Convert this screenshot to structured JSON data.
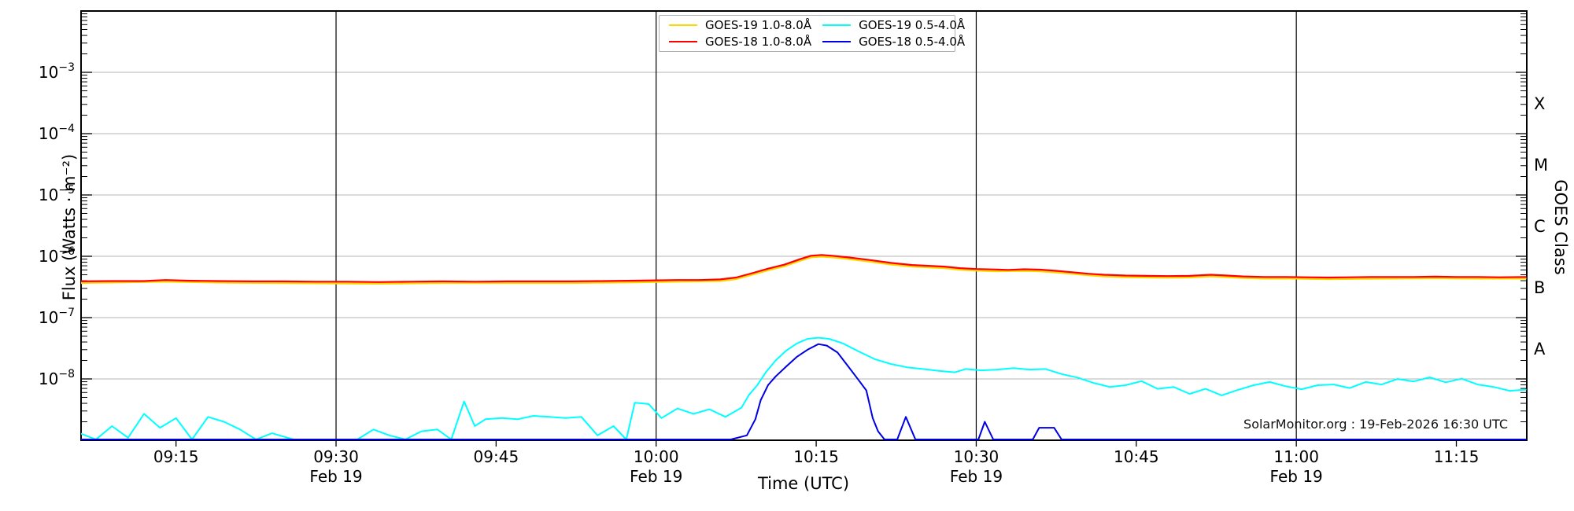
{
  "figure": {
    "watermark": "SolarMonitor.org : 19-Feb-2026 16:30 UTC",
    "background_color": "#ffffff",
    "frame_color": "#000000",
    "gridline_color": "#b4b4b4",
    "vline_color": "#000000"
  },
  "chart_data": {
    "type": "line",
    "title": "",
    "xlabel": "Time (UTC)",
    "ylabel": "Flux (Watts · m⁻²)",
    "ylabel_right": "GOES Class",
    "x_unit": "minutes after 09:00 UTC on 19-Feb-2026",
    "x_domain_minutes": [
      6.1,
      141.6
    ],
    "y_domain": [
      1e-09,
      0.01
    ],
    "grid": "horizontal-gray-decades plus black vertical lines each 30 min",
    "x_ticks": [
      {
        "t": 15,
        "label": "09:15",
        "sublabel": ""
      },
      {
        "t": 30,
        "label": "09:30",
        "sublabel": "Feb 19"
      },
      {
        "t": 45,
        "label": "09:45",
        "sublabel": ""
      },
      {
        "t": 60,
        "label": "10:00",
        "sublabel": "Feb 19"
      },
      {
        "t": 75,
        "label": "10:15",
        "sublabel": ""
      },
      {
        "t": 90,
        "label": "10:30",
        "sublabel": "Feb 19"
      },
      {
        "t": 105,
        "label": "10:45",
        "sublabel": ""
      },
      {
        "t": 120,
        "label": "11:00",
        "sublabel": "Feb 19"
      },
      {
        "t": 135,
        "label": "11:15",
        "sublabel": ""
      }
    ],
    "vlines_t": [
      30,
      60,
      90,
      120
    ],
    "hlines": [
      0.001,
      0.0001,
      1e-05,
      1e-06,
      1e-07,
      1e-08
    ],
    "y_ticks": [
      {
        "value": 0.001,
        "base": "10",
        "exp": "−3"
      },
      {
        "value": 0.0001,
        "base": "10",
        "exp": "−4"
      },
      {
        "value": 1e-05,
        "base": "10",
        "exp": "−5"
      },
      {
        "value": 1e-06,
        "base": "10",
        "exp": "−6"
      },
      {
        "value": 1e-07,
        "base": "10",
        "exp": "−7"
      },
      {
        "value": 1e-08,
        "base": "10",
        "exp": "−8"
      }
    ],
    "goes_classes": [
      {
        "label": "X",
        "value": 0.000316
      },
      {
        "label": "M",
        "value": 3.16e-05
      },
      {
        "label": "C",
        "value": 3.16e-06
      },
      {
        "label": "B",
        "value": 3.16e-07
      },
      {
        "label": "A",
        "value": 3.16e-08
      }
    ],
    "legend": {
      "position": "top-center",
      "entries": [
        {
          "label": "GOES-19 1.0-8.0Å",
          "color": "#ffd700"
        },
        {
          "label": "GOES-18 1.0-8.0Å",
          "color": "#ff0000"
        },
        {
          "label": "GOES-19 0.5-4.0Å",
          "color": "#00ffff"
        },
        {
          "label": "GOES-18 0.5-4.0Å",
          "color": "#0000e6"
        }
      ]
    },
    "series": [
      {
        "name": "GOES-19 1.0-8.0Å",
        "color": "#ffd700",
        "width": 2.2,
        "points": [
          [
            6,
            3.67e-07
          ],
          [
            14,
            3.85e-07
          ],
          [
            20,
            3.7e-07
          ],
          [
            28,
            3.62e-07
          ],
          [
            34,
            3.57e-07
          ],
          [
            40,
            3.67e-07
          ],
          [
            46,
            3.67e-07
          ],
          [
            52,
            3.67e-07
          ],
          [
            58,
            3.76e-07
          ],
          [
            62,
            3.85e-07
          ],
          [
            66,
            3.95e-07
          ],
          [
            67.5,
            4.23e-07
          ],
          [
            69,
            4.98e-07
          ],
          [
            70.5,
            5.92e-07
          ],
          [
            72,
            6.86e-07
          ],
          [
            73.5,
            8.46e-07
          ],
          [
            74.5,
            9.59e-07
          ],
          [
            75.5,
            9.87e-07
          ],
          [
            76.5,
            9.59e-07
          ],
          [
            78,
            9.02e-07
          ],
          [
            80,
            8.18e-07
          ],
          [
            82,
            7.33e-07
          ],
          [
            84,
            6.77e-07
          ],
          [
            85.5,
            6.58e-07
          ],
          [
            87,
            6.39e-07
          ],
          [
            88.5,
            6.02e-07
          ],
          [
            90,
            5.83e-07
          ],
          [
            92,
            5.69e-07
          ],
          [
            94.5,
            5.78e-07
          ],
          [
            96,
            5.69e-07
          ],
          [
            97.5,
            5.45e-07
          ],
          [
            99,
            5.17e-07
          ],
          [
            100.5,
            4.89e-07
          ],
          [
            102,
            4.7e-07
          ],
          [
            104,
            4.56e-07
          ],
          [
            106,
            4.51e-07
          ],
          [
            108,
            4.47e-07
          ],
          [
            110,
            4.51e-07
          ],
          [
            112,
            4.7e-07
          ],
          [
            113.5,
            4.56e-07
          ],
          [
            115,
            4.42e-07
          ],
          [
            117,
            4.32e-07
          ],
          [
            120,
            4.32e-07
          ],
          [
            123,
            4.23e-07
          ],
          [
            126,
            4.28e-07
          ],
          [
            129,
            4.32e-07
          ],
          [
            133,
            4.37e-07
          ],
          [
            137,
            4.32e-07
          ],
          [
            141.5,
            4.32e-07
          ]
        ]
      },
      {
        "name": "GOES-18 1.0-8.0Å",
        "color": "#ff0000",
        "width": 2.2,
        "points": [
          [
            6,
            3.9e-07
          ],
          [
            9,
            3.95e-07
          ],
          [
            12,
            3.95e-07
          ],
          [
            14,
            4.1e-07
          ],
          [
            16,
            4e-07
          ],
          [
            19,
            3.95e-07
          ],
          [
            22,
            3.9e-07
          ],
          [
            25,
            3.9e-07
          ],
          [
            28,
            3.85e-07
          ],
          [
            31,
            3.85e-07
          ],
          [
            34,
            3.8e-07
          ],
          [
            37,
            3.85e-07
          ],
          [
            40,
            3.9e-07
          ],
          [
            43,
            3.85e-07
          ],
          [
            46,
            3.9e-07
          ],
          [
            49,
            3.9e-07
          ],
          [
            52,
            3.9e-07
          ],
          [
            55,
            3.95e-07
          ],
          [
            58,
            4e-07
          ],
          [
            60,
            4.05e-07
          ],
          [
            62,
            4.1e-07
          ],
          [
            64,
            4.1e-07
          ],
          [
            66,
            4.2e-07
          ],
          [
            67.5,
            4.5e-07
          ],
          [
            69,
            5.3e-07
          ],
          [
            70.5,
            6.3e-07
          ],
          [
            72,
            7.3e-07
          ],
          [
            73.5,
            9e-07
          ],
          [
            74.5,
            1.02e-06
          ],
          [
            75.5,
            1.05e-06
          ],
          [
            76.5,
            1.02e-06
          ],
          [
            78,
            9.6e-07
          ],
          [
            80,
            8.7e-07
          ],
          [
            82,
            7.8e-07
          ],
          [
            84,
            7.2e-07
          ],
          [
            85.5,
            7e-07
          ],
          [
            87,
            6.8e-07
          ],
          [
            88.5,
            6.4e-07
          ],
          [
            90,
            6.2e-07
          ],
          [
            91.5,
            6.1e-07
          ],
          [
            93,
            6e-07
          ],
          [
            94.5,
            6.15e-07
          ],
          [
            96,
            6.05e-07
          ],
          [
            97.5,
            5.8e-07
          ],
          [
            99,
            5.5e-07
          ],
          [
            100.5,
            5.2e-07
          ],
          [
            102,
            5e-07
          ],
          [
            104,
            4.85e-07
          ],
          [
            106,
            4.8e-07
          ],
          [
            108,
            4.75e-07
          ],
          [
            110,
            4.8e-07
          ],
          [
            112,
            5e-07
          ],
          [
            113.5,
            4.85e-07
          ],
          [
            115,
            4.7e-07
          ],
          [
            117,
            4.6e-07
          ],
          [
            119,
            4.6e-07
          ],
          [
            121,
            4.55e-07
          ],
          [
            123,
            4.5e-07
          ],
          [
            125,
            4.55e-07
          ],
          [
            127,
            4.6e-07
          ],
          [
            129,
            4.6e-07
          ],
          [
            131,
            4.6e-07
          ],
          [
            133,
            4.65e-07
          ],
          [
            135,
            4.6e-07
          ],
          [
            137,
            4.6e-07
          ],
          [
            139,
            4.55e-07
          ],
          [
            141.5,
            4.6e-07
          ]
        ]
      },
      {
        "name": "GOES-19 0.5-4.0Å",
        "color": "#00ffff",
        "width": 2,
        "points": [
          [
            6,
            1.3e-09
          ],
          [
            7.5,
            1e-09
          ],
          [
            9,
            1.7e-09
          ],
          [
            10.5,
            1.1e-09
          ],
          [
            12,
            2.7e-09
          ],
          [
            13.5,
            1.6e-09
          ],
          [
            15,
            2.3e-09
          ],
          [
            16.5,
            1e-09
          ],
          [
            18,
            2.4e-09
          ],
          [
            19.5,
            2e-09
          ],
          [
            21,
            1.5e-09
          ],
          [
            22.5,
            1e-09
          ],
          [
            24,
            1.3e-09
          ],
          [
            26,
            1e-09
          ],
          [
            28,
            1e-09
          ],
          [
            30,
            1e-09
          ],
          [
            32,
            1e-09
          ],
          [
            33.5,
            1.5e-09
          ],
          [
            35,
            1.2e-09
          ],
          [
            36.5,
            1e-09
          ],
          [
            38,
            1.4e-09
          ],
          [
            39.5,
            1.5e-09
          ],
          [
            40.8,
            1e-09
          ],
          [
            42,
            4.3e-09
          ],
          [
            43,
            1.7e-09
          ],
          [
            44,
            2.2e-09
          ],
          [
            45.5,
            2.3e-09
          ],
          [
            47,
            2.2e-09
          ],
          [
            48.5,
            2.5e-09
          ],
          [
            50,
            2.4e-09
          ],
          [
            51.5,
            2.3e-09
          ],
          [
            53,
            2.4e-09
          ],
          [
            54.5,
            1.2e-09
          ],
          [
            56,
            1.7e-09
          ],
          [
            57.2,
            1e-09
          ],
          [
            58,
            4.1e-09
          ],
          [
            59.3,
            3.9e-09
          ],
          [
            60.5,
            2.3e-09
          ],
          [
            62,
            3.3e-09
          ],
          [
            63.5,
            2.7e-09
          ],
          [
            65,
            3.2e-09
          ],
          [
            66.5,
            2.4e-09
          ],
          [
            68,
            3.4e-09
          ],
          [
            68.7,
            5.5e-09
          ],
          [
            69.5,
            8e-09
          ],
          [
            70.3,
            1.3e-08
          ],
          [
            71.2,
            2e-08
          ],
          [
            72.2,
            2.9e-08
          ],
          [
            73.2,
            3.8e-08
          ],
          [
            74.2,
            4.5e-08
          ],
          [
            75.2,
            4.7e-08
          ],
          [
            76.2,
            4.5e-08
          ],
          [
            77.5,
            3.8e-08
          ],
          [
            79,
            2.8e-08
          ],
          [
            80.5,
            2.1e-08
          ],
          [
            82,
            1.75e-08
          ],
          [
            83.5,
            1.55e-08
          ],
          [
            85,
            1.45e-08
          ],
          [
            86.5,
            1.35e-08
          ],
          [
            88,
            1.28e-08
          ],
          [
            89,
            1.45e-08
          ],
          [
            90.5,
            1.38e-08
          ],
          [
            92,
            1.42e-08
          ],
          [
            93.5,
            1.5e-08
          ],
          [
            95,
            1.42e-08
          ],
          [
            96.5,
            1.45e-08
          ],
          [
            98,
            1.2e-08
          ],
          [
            99.5,
            1.05e-08
          ],
          [
            101,
            8.6e-09
          ],
          [
            102.5,
            7.4e-09
          ],
          [
            104,
            7.9e-09
          ],
          [
            105.5,
            9.2e-09
          ],
          [
            107,
            6.9e-09
          ],
          [
            108.5,
            7.4e-09
          ],
          [
            110,
            5.7e-09
          ],
          [
            111.5,
            6.9e-09
          ],
          [
            113,
            5.4e-09
          ],
          [
            114.5,
            6.6e-09
          ],
          [
            116,
            7.9e-09
          ],
          [
            117.5,
            8.9e-09
          ],
          [
            119,
            7.6e-09
          ],
          [
            120.5,
            6.8e-09
          ],
          [
            122,
            7.9e-09
          ],
          [
            123.5,
            8.1e-09
          ],
          [
            125,
            7.1e-09
          ],
          [
            126.5,
            8.9e-09
          ],
          [
            128,
            8.1e-09
          ],
          [
            129.5,
            1e-08
          ],
          [
            131,
            9.1e-09
          ],
          [
            132.5,
            1.06e-08
          ],
          [
            134,
            8.8e-09
          ],
          [
            135.5,
            1.01e-08
          ],
          [
            137,
            8.1e-09
          ],
          [
            138.5,
            7.4e-09
          ],
          [
            140,
            6.4e-09
          ],
          [
            141.5,
            6.7e-09
          ]
        ]
      },
      {
        "name": "GOES-18 0.5-4.0Å",
        "color": "#0000e6",
        "width": 2,
        "points": [
          [
            6,
            1e-09
          ],
          [
            15,
            1e-09
          ],
          [
            25,
            1e-09
          ],
          [
            35,
            1e-09
          ],
          [
            45,
            1e-09
          ],
          [
            55,
            1e-09
          ],
          [
            62,
            1e-09
          ],
          [
            67,
            1e-09
          ],
          [
            68.5,
            1.2e-09
          ],
          [
            69.3,
            2.2e-09
          ],
          [
            69.8,
            4.5e-09
          ],
          [
            70.5,
            8e-09
          ],
          [
            71.2,
            1.1e-08
          ],
          [
            72.2,
            1.6e-08
          ],
          [
            73.2,
            2.3e-08
          ],
          [
            74.2,
            3e-08
          ],
          [
            75.2,
            3.7e-08
          ],
          [
            76,
            3.5e-08
          ],
          [
            77,
            2.7e-08
          ],
          [
            78,
            1.6e-08
          ],
          [
            78.8,
            1.05e-08
          ],
          [
            79.7,
            6.5e-09
          ],
          [
            80.3,
            2.3e-09
          ],
          [
            80.8,
            1.4e-09
          ],
          [
            81.4,
            1e-09
          ],
          [
            82.6,
            1e-09
          ],
          [
            83.4,
            2.4e-09
          ],
          [
            84.3,
            1e-09
          ],
          [
            86,
            1e-09
          ],
          [
            90.2,
            1e-09
          ],
          [
            90.8,
            2e-09
          ],
          [
            91.6,
            1e-09
          ],
          [
            94,
            1e-09
          ],
          [
            95.3,
            1e-09
          ],
          [
            95.9,
            1.6e-09
          ],
          [
            97.3,
            1.6e-09
          ],
          [
            98,
            1e-09
          ],
          [
            102,
            1e-09
          ],
          [
            110,
            1e-09
          ],
          [
            120,
            1e-09
          ],
          [
            130,
            1e-09
          ],
          [
            141.5,
            1e-09
          ]
        ]
      }
    ]
  }
}
